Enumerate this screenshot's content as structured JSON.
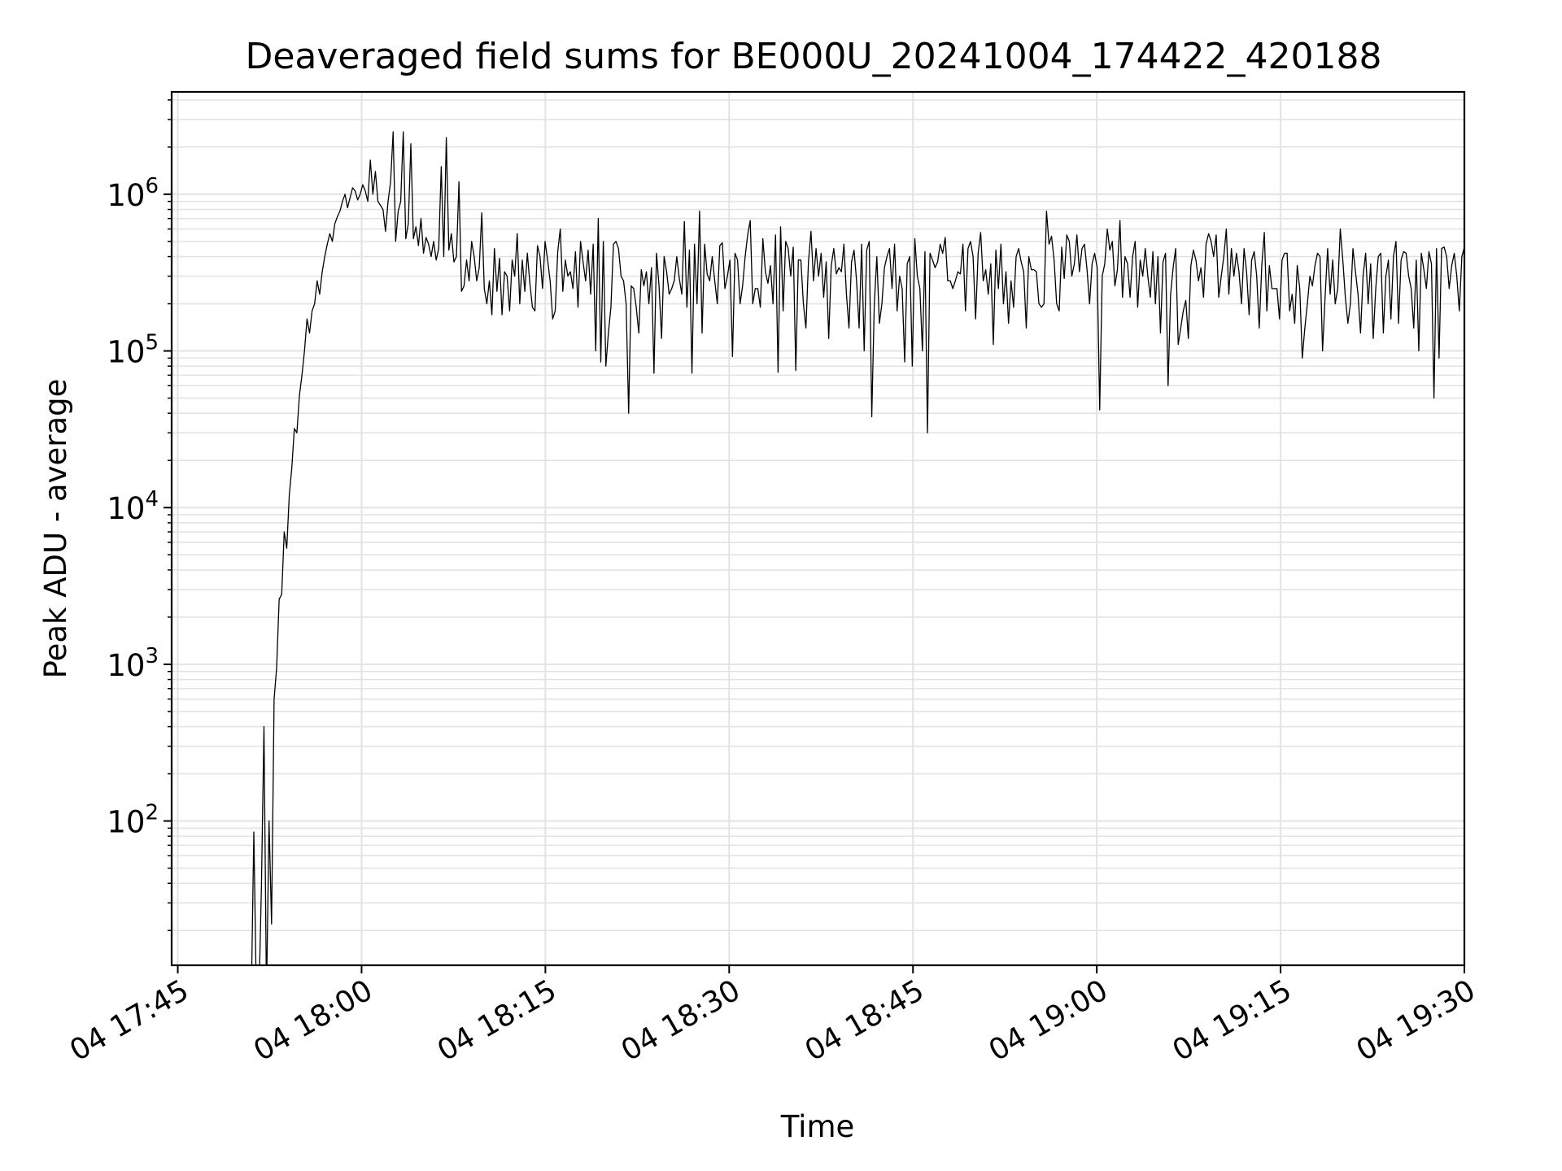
{
  "chart_data": {
    "type": "line",
    "title": "Deaveraged field sums for BE000U_20241004_174422_420188",
    "xlabel": "Time",
    "ylabel": "Peak ADU - average",
    "y_scale": "log",
    "xlim": [
      "2024-10-04 17:44:30",
      "2024-10-04 19:30:00"
    ],
    "ylim": [
      12,
      4500000
    ],
    "x_tick_labels": [
      "04 17:45",
      "04 18:00",
      "04 18:15",
      "04 18:30",
      "04 18:45",
      "04 19:00",
      "04 19:15",
      "04 19:30"
    ],
    "x_tick_times": [
      "17:45",
      "18:00",
      "18:15",
      "18:30",
      "18:45",
      "19:00",
      "19:15",
      "19:30"
    ],
    "y_tick_values": [
      100,
      1000,
      10000,
      100000,
      1000000
    ],
    "y_tick_labels": [
      {
        "base": "10",
        "exp": "2"
      },
      {
        "base": "10",
        "exp": "3"
      },
      {
        "base": "10",
        "exp": "4"
      },
      {
        "base": "10",
        "exp": "5"
      },
      {
        "base": "10",
        "exp": "6"
      }
    ],
    "grid": true,
    "line_color": "#000000",
    "grid_color": "#e3e3e3",
    "series": [
      {
        "x_start": "17:51:00",
        "x_end": "19:30:00",
        "values_estimated": [
          0,
          85,
          0,
          0,
          38,
          400,
          0,
          100,
          22,
          600,
          950,
          2600,
          2800,
          7000,
          5500,
          12000,
          18000,
          32000,
          30000,
          52000,
          70000,
          100000,
          160000,
          130000,
          180000,
          200000,
          280000,
          230000,
          320000,
          400000,
          480000,
          560000,
          500000,
          650000,
          720000,
          780000,
          900000,
          1000000,
          820000,
          950000,
          1100000,
          1050000,
          920000,
          1000000,
          1150000,
          1050000,
          900000,
          1650000,
          1000000,
          1400000,
          900000,
          850000,
          800000,
          580000,
          900000,
          1200000,
          2500000,
          500000,
          780000,
          900000,
          2500000,
          520000,
          650000,
          2100000,
          520000,
          620000,
          470000,
          700000,
          420000,
          530000,
          480000,
          400000,
          500000,
          380000,
          450000,
          1500000,
          400000,
          2300000,
          440000,
          560000,
          370000,
          400000,
          1200000,
          240000,
          260000,
          380000,
          280000,
          500000,
          400000,
          280000,
          340000,
          760000,
          250000,
          200000,
          280000,
          170000,
          450000,
          240000,
          390000,
          170000,
          320000,
          300000,
          180000,
          380000,
          300000,
          560000,
          200000,
          380000,
          240000,
          420000,
          270000,
          190000,
          180000,
          470000,
          400000,
          250000,
          500000,
          380000,
          280000,
          160000,
          180000,
          430000,
          600000,
          240000,
          380000,
          300000,
          320000,
          250000,
          430000,
          190000,
          500000,
          370000,
          280000,
          440000,
          230000,
          480000,
          100000,
          700000,
          85000,
          500000,
          80000,
          130000,
          190000,
          480000,
          500000,
          450000,
          300000,
          280000,
          200000,
          40000,
          260000,
          250000,
          190000,
          130000,
          330000,
          260000,
          320000,
          200000,
          340000,
          72000,
          420000,
          260000,
          120000,
          400000,
          320000,
          230000,
          250000,
          280000,
          400000,
          290000,
          230000,
          670000,
          190000,
          440000,
          72000,
          480000,
          200000,
          780000,
          130000,
          480000,
          310000,
          280000,
          400000,
          280000,
          200000,
          470000,
          490000,
          250000,
          300000,
          380000,
          92000,
          420000,
          380000,
          200000,
          260000,
          400000,
          550000,
          680000,
          200000,
          250000,
          250000,
          190000,
          520000,
          320000,
          270000,
          350000,
          200000,
          550000,
          73000,
          620000,
          180000,
          500000,
          450000,
          300000,
          460000,
          75000,
          380000,
          380000,
          200000,
          140000,
          370000,
          580000,
          280000,
          450000,
          300000,
          420000,
          220000,
          370000,
          120000,
          350000,
          450000,
          310000,
          340000,
          320000,
          480000,
          230000,
          140000,
          370000,
          440000,
          280000,
          140000,
          480000,
          100000,
          440000,
          500000,
          38000,
          200000,
          400000,
          150000,
          200000,
          340000,
          400000,
          450000,
          250000,
          480000,
          180000,
          300000,
          250000,
          85000,
          360000,
          400000,
          80000,
          520000,
          300000,
          250000,
          100000,
          430000,
          30000,
          420000,
          380000,
          340000,
          370000,
          480000,
          420000,
          530000,
          280000,
          280000,
          250000,
          280000,
          320000,
          310000,
          480000,
          180000,
          450000,
          500000,
          400000,
          160000,
          420000,
          570000,
          280000,
          330000,
          230000,
          360000,
          110000,
          440000,
          250000,
          480000,
          200000,
          320000,
          150000,
          280000,
          190000,
          400000,
          450000,
          370000,
          320000,
          140000,
          400000,
          330000,
          330000,
          320000,
          200000,
          190000,
          200000,
          780000,
          480000,
          540000,
          380000,
          200000,
          180000,
          460000,
          290000,
          550000,
          500000,
          300000,
          360000,
          550000,
          320000,
          450000,
          480000,
          330000,
          200000,
          360000,
          420000,
          340000,
          42000,
          300000,
          360000,
          600000,
          440000,
          500000,
          260000,
          330000,
          680000,
          220000,
          400000,
          360000,
          220000,
          400000,
          500000,
          190000,
          380000,
          300000,
          450000,
          300000,
          220000,
          430000,
          200000,
          400000,
          130000,
          370000,
          420000,
          60000,
          230000,
          340000,
          450000,
          110000,
          140000,
          180000,
          210000,
          120000,
          350000,
          440000,
          380000,
          280000,
          340000,
          220000,
          480000,
          560000,
          500000,
          400000,
          550000,
          220000,
          300000,
          400000,
          600000,
          230000,
          450000,
          300000,
          420000,
          320000,
          200000,
          450000,
          320000,
          170000,
          380000,
          430000,
          300000,
          140000,
          350000,
          570000,
          180000,
          350000,
          250000,
          250000,
          250000,
          160000,
          380000,
          420000,
          420000,
          180000,
          230000,
          150000,
          350000,
          250000,
          90000,
          140000,
          200000,
          300000,
          260000,
          350000,
          420000,
          400000,
          100000,
          220000,
          450000,
          230000,
          380000,
          200000,
          250000,
          600000,
          380000,
          220000,
          150000,
          200000,
          450000,
          320000,
          230000,
          130000,
          300000,
          420000,
          200000,
          360000,
          120000,
          250000,
          400000,
          420000,
          130000,
          300000,
          380000,
          160000,
          400000,
          500000,
          150000,
          380000,
          430000,
          420000,
          300000,
          250000,
          140000,
          380000,
          100000,
          420000,
          330000,
          250000,
          430000,
          360000,
          50000,
          450000,
          90000,
          450000,
          460000,
          400000,
          250000,
          350000,
          420000,
          300000,
          180000,
          400000,
          460000
        ]
      }
    ]
  }
}
